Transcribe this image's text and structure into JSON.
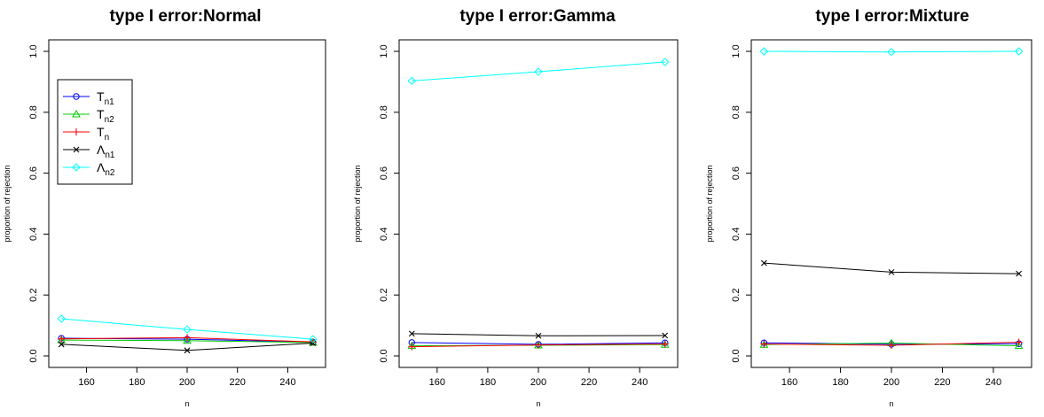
{
  "chart_data": [
    {
      "type": "line",
      "title": "type I error:Normal",
      "xlabel": "n",
      "ylabel": "proportion of rejection",
      "x": [
        150,
        200,
        250
      ],
      "xlim": [
        145,
        255
      ],
      "ylim": [
        0,
        1
      ],
      "xticks": [
        "160",
        "180",
        "200",
        "220",
        "240"
      ],
      "yticks": [
        "0.0",
        "0.2",
        "0.4",
        "0.6",
        "0.8",
        "1.0"
      ],
      "legend": "top-left",
      "series": [
        {
          "key": "tn1",
          "values": [
            0.058,
            0.055,
            0.045
          ]
        },
        {
          "key": "tn2",
          "values": [
            0.052,
            0.05,
            0.044
          ]
        },
        {
          "key": "tn",
          "values": [
            0.056,
            0.06,
            0.046
          ]
        },
        {
          "key": "ln1",
          "values": [
            0.038,
            0.018,
            0.042
          ]
        },
        {
          "key": "ln2",
          "values": [
            0.122,
            0.087,
            0.055
          ]
        }
      ]
    },
    {
      "type": "line",
      "title": "type I error:Gamma",
      "xlabel": "n",
      "ylabel": "proportion of rejection",
      "x": [
        150,
        200,
        250
      ],
      "xlim": [
        145,
        255
      ],
      "ylim": [
        0,
        1
      ],
      "xticks": [
        "160",
        "180",
        "200",
        "220",
        "240"
      ],
      "yticks": [
        "0.0",
        "0.2",
        "0.4",
        "0.6",
        "0.8",
        "1.0"
      ],
      "series": [
        {
          "key": "tn1",
          "values": [
            0.044,
            0.038,
            0.043
          ]
        },
        {
          "key": "tn2",
          "values": [
            0.033,
            0.035,
            0.037
          ]
        },
        {
          "key": "tn",
          "values": [
            0.03,
            0.036,
            0.039
          ]
        },
        {
          "key": "ln1",
          "values": [
            0.073,
            0.066,
            0.067
          ]
        },
        {
          "key": "ln2",
          "values": [
            0.903,
            0.933,
            0.965
          ]
        }
      ]
    },
    {
      "type": "line",
      "title": "type I error:Mixture",
      "xlabel": "n",
      "ylabel": "proportion of rejection",
      "x": [
        150,
        200,
        250
      ],
      "xlim": [
        145,
        255
      ],
      "ylim": [
        0,
        1
      ],
      "xticks": [
        "160",
        "180",
        "200",
        "220",
        "240"
      ],
      "yticks": [
        "0.0",
        "0.2",
        "0.4",
        "0.6",
        "0.8",
        "1.0"
      ],
      "series": [
        {
          "key": "tn1",
          "values": [
            0.043,
            0.038,
            0.04
          ]
        },
        {
          "key": "tn2",
          "values": [
            0.037,
            0.042,
            0.033
          ]
        },
        {
          "key": "tn",
          "values": [
            0.039,
            0.035,
            0.045
          ]
        },
        {
          "key": "ln1",
          "values": [
            0.305,
            0.275,
            0.27
          ]
        },
        {
          "key": "ln2",
          "values": [
            1.0,
            0.998,
            1.0
          ]
        }
      ]
    }
  ],
  "legend_entries": [
    {
      "key": "tn1",
      "base": "T",
      "sub": "n1",
      "color": "#0000ff",
      "marker": "circle"
    },
    {
      "key": "tn2",
      "base": "T",
      "sub": "n2",
      "color": "#00cc00",
      "marker": "triangle"
    },
    {
      "key": "tn",
      "base": "T",
      "sub": "n",
      "color": "#ff0000",
      "marker": "plus"
    },
    {
      "key": "ln1",
      "base": "Λ",
      "sub": "n1",
      "color": "#000000",
      "marker": "cross"
    },
    {
      "key": "ln2",
      "base": "Λ",
      "sub": "n2",
      "color": "#00ffff",
      "marker": "diamond"
    }
  ]
}
